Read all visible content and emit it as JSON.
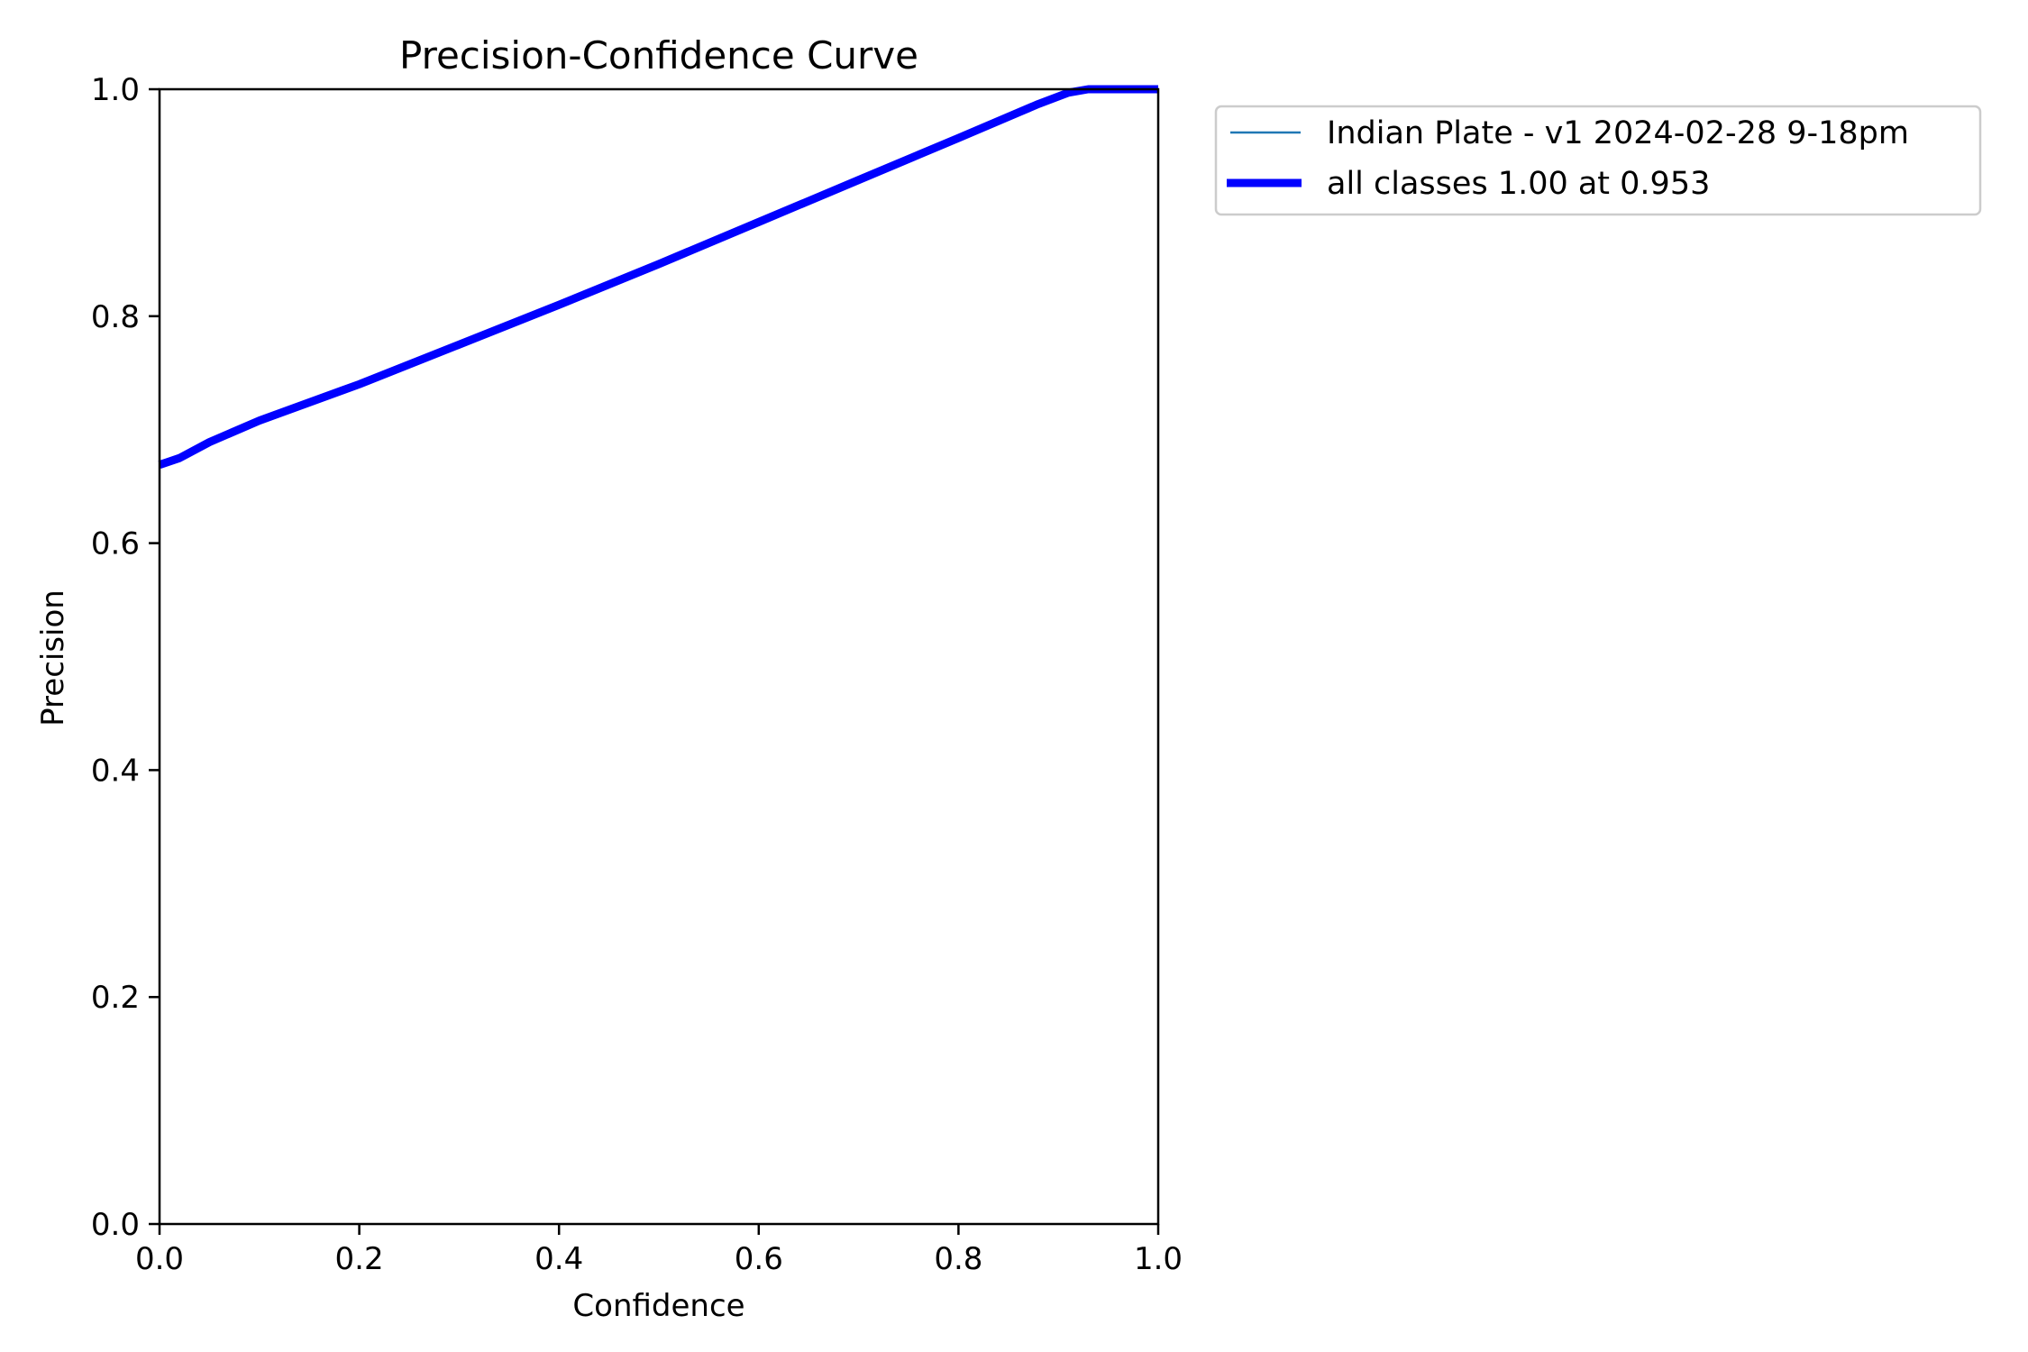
{
  "chart_data": {
    "type": "line",
    "title": "Precision-Confidence Curve",
    "xlabel": "Confidence",
    "ylabel": "Precision",
    "xlim": [
      0,
      1
    ],
    "ylim": [
      0,
      1
    ],
    "x_ticks": [
      "0.0",
      "0.2",
      "0.4",
      "0.6",
      "0.8",
      "1.0"
    ],
    "y_ticks": [
      "0.0",
      "0.2",
      "0.4",
      "0.6",
      "0.8",
      "1.0"
    ],
    "grid": false,
    "legend_position": "outside-top-right",
    "series": [
      {
        "name": "Indian Plate - v1 2024-02-28 9-18pm",
        "color": "#1f77b4",
        "style": "thin",
        "x": [
          0.0,
          0.02,
          0.05,
          0.1,
          0.2,
          0.3,
          0.4,
          0.5,
          0.6,
          0.7,
          0.8,
          0.88,
          0.91,
          0.93,
          0.95,
          0.97,
          1.0
        ],
        "y": [
          0.669,
          0.675,
          0.689,
          0.708,
          0.74,
          0.775,
          0.81,
          0.846,
          0.883,
          0.92,
          0.957,
          0.987,
          0.997,
          1.0,
          1.0,
          1.0,
          1.0
        ]
      },
      {
        "name": "all classes 1.00 at 0.953",
        "color": "#0000ff",
        "style": "thick",
        "x": [
          0.0,
          0.02,
          0.05,
          0.1,
          0.2,
          0.3,
          0.4,
          0.5,
          0.6,
          0.7,
          0.8,
          0.88,
          0.91,
          0.93,
          0.95,
          0.97,
          1.0
        ],
        "y": [
          0.669,
          0.675,
          0.689,
          0.708,
          0.74,
          0.775,
          0.81,
          0.846,
          0.883,
          0.92,
          0.957,
          0.987,
          0.997,
          1.0,
          1.0,
          1.0,
          1.0
        ]
      }
    ]
  }
}
